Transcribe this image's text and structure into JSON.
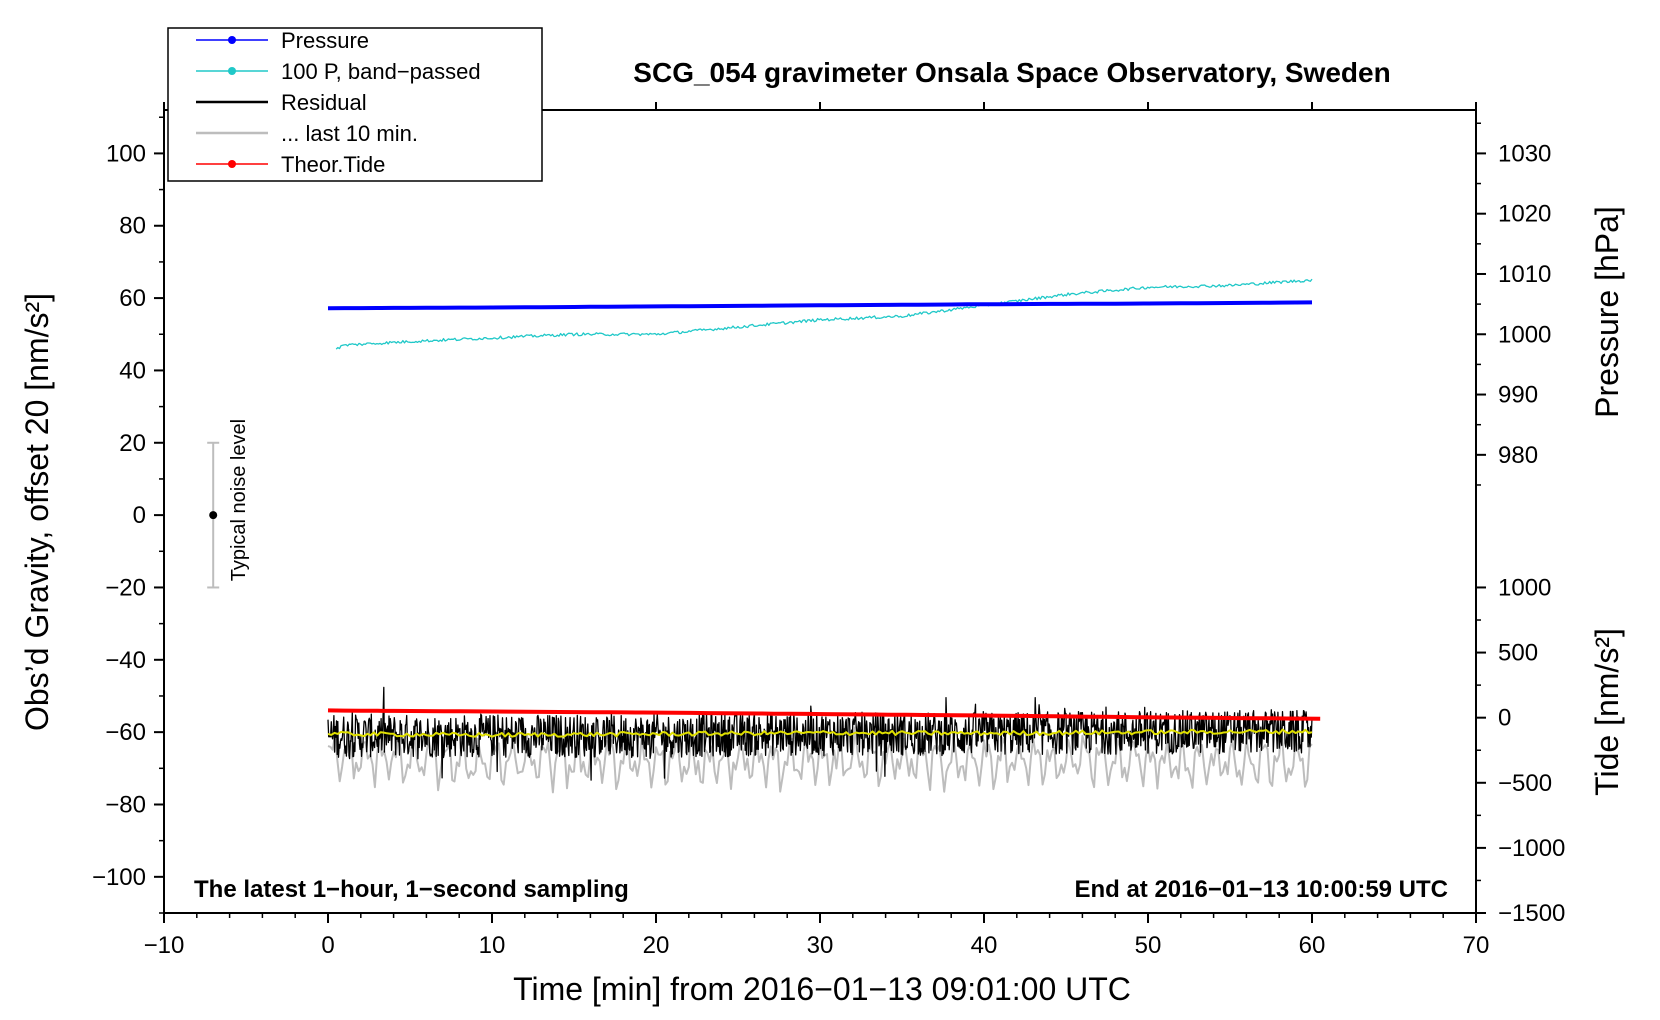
{
  "chart_data": {
    "type": "line",
    "title": "SCG_054 gravimeter Onsala Space Observatory, Sweden",
    "xlabel": "Time [min] from 2016−01−13 09:01:00 UTC",
    "ylabel_left": "Obs’d Gravity, offset 20 [nm/s²]",
    "ylabel_right_pressure": "Pressure [hPa]",
    "ylabel_right_tide": "Tide [nm/s²]",
    "xlim": [
      -10,
      70
    ],
    "ylim_left": [
      -110,
      112
    ],
    "xticks": [
      -10,
      0,
      10,
      20,
      30,
      40,
      50,
      60,
      70
    ],
    "xtick_labels": [
      "−10",
      "0",
      "10",
      "20",
      "30",
      "40",
      "50",
      "60",
      "70"
    ],
    "yticks_left": [
      -100,
      -80,
      -60,
      -40,
      -20,
      0,
      20,
      40,
      60,
      80,
      100
    ],
    "ytick_left_labels": [
      "−100",
      "−80",
      "−60",
      "−40",
      "−20",
      "0",
      "20",
      "40",
      "60",
      "80",
      "100"
    ],
    "pressure_axis": {
      "ticks": [
        980,
        990,
        1000,
        1010,
        1020,
        1030
      ],
      "tick_labels": [
        "980",
        "990",
        "1000",
        "1010",
        "1020",
        "1030"
      ],
      "anchor": [
        [
          1000,
          50
        ],
        [
          1030,
          100
        ]
      ]
    },
    "tide_axis": {
      "ticks": [
        -1500,
        -1000,
        -500,
        0,
        500,
        1000
      ],
      "tick_labels": [
        "−1500",
        "−1000",
        "−500",
        "0",
        "500",
        "1000"
      ],
      "anchor": [
        [
          -1500,
          -110
        ],
        [
          1000,
          -20
        ]
      ]
    },
    "annotations": {
      "bottom_left": "The latest 1−hour, 1−second sampling",
      "bottom_right": "End at 2016−01−13 10:00:59 UTC"
    },
    "legend": {
      "position": "top-left",
      "entries": [
        {
          "label": "Pressure",
          "color": "#0000ff",
          "marker": true
        },
        {
          "label": "100 P, band−passed",
          "color": "#20c8c8",
          "marker": true
        },
        {
          "label": "Residual",
          "color": "#000000",
          "marker": false
        },
        {
          "label": "... last 10 min.",
          "color": "#bdbdbd",
          "marker": false
        },
        {
          "label": "Theor.Tide",
          "color": "#ff0000",
          "marker": true
        }
      ]
    },
    "noise_indicator": {
      "label": "Typical noise level",
      "x": -7,
      "center": 0,
      "range": [
        -20,
        20
      ]
    },
    "series": [
      {
        "name": "Pressure",
        "color": "#0000ff",
        "x": [
          0,
          10,
          20,
          30,
          40,
          50,
          60
        ],
        "y": [
          57.2,
          57.4,
          57.7,
          58.0,
          58.3,
          58.5,
          58.8
        ]
      },
      {
        "name": "100 P, band−passed",
        "color": "#20c8c8",
        "x": [
          0.5,
          1,
          5,
          10,
          15,
          20,
          25,
          30,
          35,
          40,
          45,
          50,
          55,
          60
        ],
        "y": [
          46,
          47,
          48,
          49,
          50,
          50,
          52,
          54,
          55,
          58,
          61,
          63,
          63.5,
          65
        ]
      },
      {
        "name": "Residual",
        "color": "#000000",
        "x": [
          0,
          10,
          20,
          30,
          40,
          50,
          60
        ],
        "y": [
          -61,
          -61,
          -61,
          -60.5,
          -60.5,
          -60,
          -60
        ],
        "noise_amplitude": 6
      },
      {
        "name": "... last 10 min.",
        "color": "#bdbdbd",
        "x": [
          0,
          10,
          20,
          30,
          40,
          50,
          60
        ],
        "y": [
          -67,
          -68,
          -68,
          -68,
          -68,
          -68,
          -68
        ],
        "noise_amplitude": 5
      },
      {
        "name": "Theor.Tide",
        "color": "#ff0000",
        "x": [
          0,
          10,
          20,
          30,
          40,
          50,
          60.5
        ],
        "y": [
          -54.0,
          -54.3,
          -54.6,
          -55.0,
          -55.4,
          -55.9,
          -56.3
        ]
      },
      {
        "name": "Residual mean",
        "color": "#e0e000",
        "x": [
          0,
          10,
          20,
          30,
          40,
          50,
          60
        ],
        "y": [
          -60.5,
          -60.8,
          -60.5,
          -60.2,
          -60.3,
          -60.0,
          -59.8
        ]
      }
    ]
  }
}
